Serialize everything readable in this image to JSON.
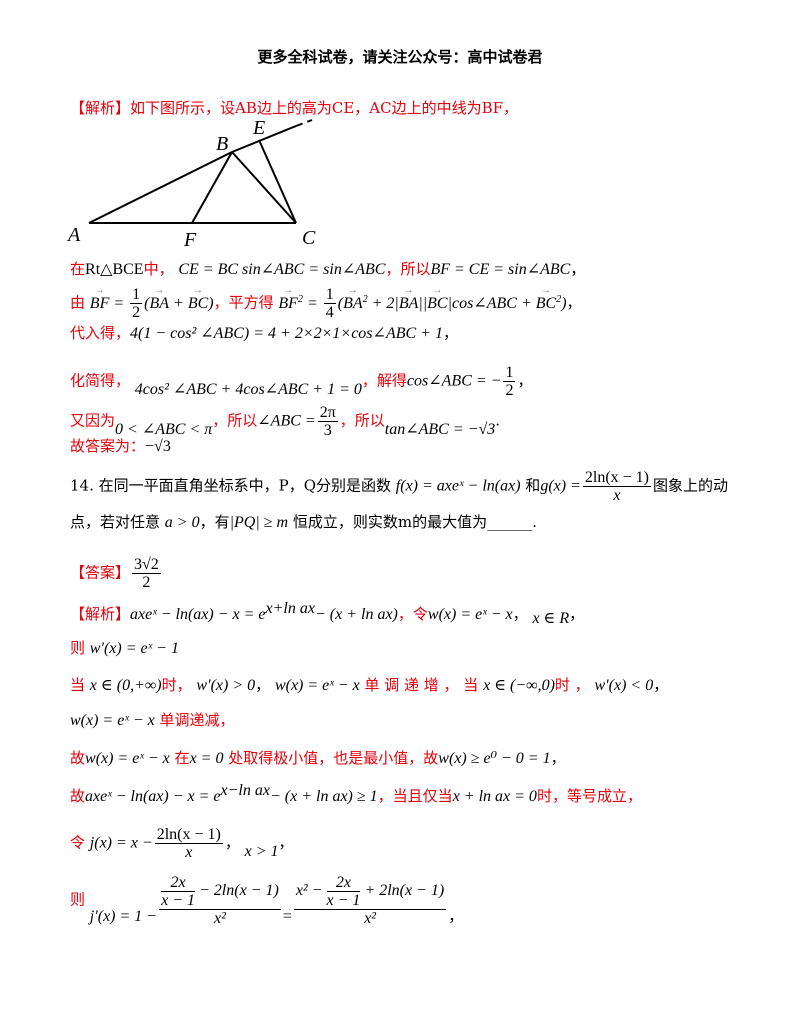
{
  "header": "更多全科试卷，请关注公众号：高中试卷君",
  "s13": {
    "tag": "【解析】",
    "intro": "如下图所示，设AB边上的高为CE，AC边上的中线为BF，",
    "labels": {
      "A": "A",
      "B": "B",
      "C": "C",
      "E": "E",
      "F": "F"
    },
    "l1a": "在",
    "l1b": "Rt△BCE",
    "l1c": "中，",
    "l1d": "CE = BC sin∠ABC = sin∠ABC",
    "l1e": "，所以",
    "l1f": "BF = CE = sin∠ABC",
    "l1g": "，",
    "l2a": "由",
    "l2b": "，平方得",
    "l3a": "代入得，",
    "l3b": "4(1 − cos² ∠ABC) = 4 + 2×2×1×cos∠ABC + 1",
    "l3c": "，",
    "l4a": "化简得，",
    "l4b": "4cos² ∠ABC + 4cos∠ABC + 1 = 0",
    "l4c": "，解得",
    "l4d": "cos∠ABC = −",
    "l4e": "，",
    "l5a": "又因为",
    "l5b": "0 < ∠ABC < π",
    "l5c": "，所以",
    "l5d": "∠ABC =",
    "l5e": "，所以",
    "l5f": "tan∠ABC = −√3",
    "l5g": ".",
    "answer_label": "故答案为：",
    "answer": "−√3"
  },
  "s14": {
    "q1": "14. 在同一平面直角坐标系中，P，Q分别是函数",
    "q_f": "f(x) = axeˣ − ln(ax)",
    "q_and": "和",
    "q_g": "g(x) =",
    "q_tail": "图象上的动",
    "q2a": "点，若对任意",
    "q2b": "a > 0",
    "q2c": "，有",
    "q2d": "|PQ| ≥ m",
    "q2e": "恒成立，则实数m的最大值为______.",
    "ans_tag": "【答案】",
    "ans_num": "3√2",
    "ans_den": "2",
    "sol_tag": "【解析】",
    "r1a": "axeˣ − ln(ax) − x = e",
    "r1b": "− (x + ln ax)",
    "r1c": "，令",
    "r1d": "w(x) = eˣ − x",
    "r1e": "，",
    "r1f": "x ∈ R",
    "r1g": "，",
    "r2a": "则",
    "r2b": "w′(x) = eˣ − 1",
    "r3a": "当",
    "r3b": "x ∈ (0,+∞)",
    "r3c": "时，",
    "r3d": "w′(x) > 0",
    "r3e": "，",
    "r3f": "w(x) = eˣ − x",
    "r3g": "单 调 递 增 ， 当",
    "r3h": "x ∈ (−∞,0)",
    "r3i": "时 ，",
    "r3j": "w′(x) < 0",
    "r3k": "，",
    "r4a": "w(x) = eˣ − x",
    "r4b": "单调递减，",
    "r5a": "故",
    "r5b": "w(x) = eˣ − x",
    "r5c": "在",
    "r5d": "x = 0",
    "r5e": "处取得极小值，也是最小值，故",
    "r5f": "w(x) ≥ e⁰ − 0 = 1",
    "r5g": "，",
    "r6a": "故",
    "r6b": "axeˣ − ln(ax) − x = e",
    "r6c": "− (x + ln ax) ≥ 1",
    "r6d": "，当且仅当",
    "r6e": "x + ln ax = 0",
    "r6f": "时，等号成立，",
    "r7a": "令",
    "r7b": "j(x) = x −",
    "r7c": "，",
    "r7d": "x > 1",
    "r7e": "，",
    "r8a": "则",
    "r8b": "j′(x) = 1 −",
    "r8c": "=",
    "r8d": "，",
    "frac_2lnx1": "2ln(x − 1)",
    "den_x": "x",
    "den_x2": "x²",
    "num8a_pre": "2x",
    "num8a_den": "x − 1",
    "num8a_post": "− 2ln(x − 1)",
    "num8b_pre": "x² −",
    "num8b_post": "+ 2ln(x − 1)",
    "sup_x_lnax": "x+ln ax",
    "sup_x_minus_lnax": "x−ln ax"
  }
}
